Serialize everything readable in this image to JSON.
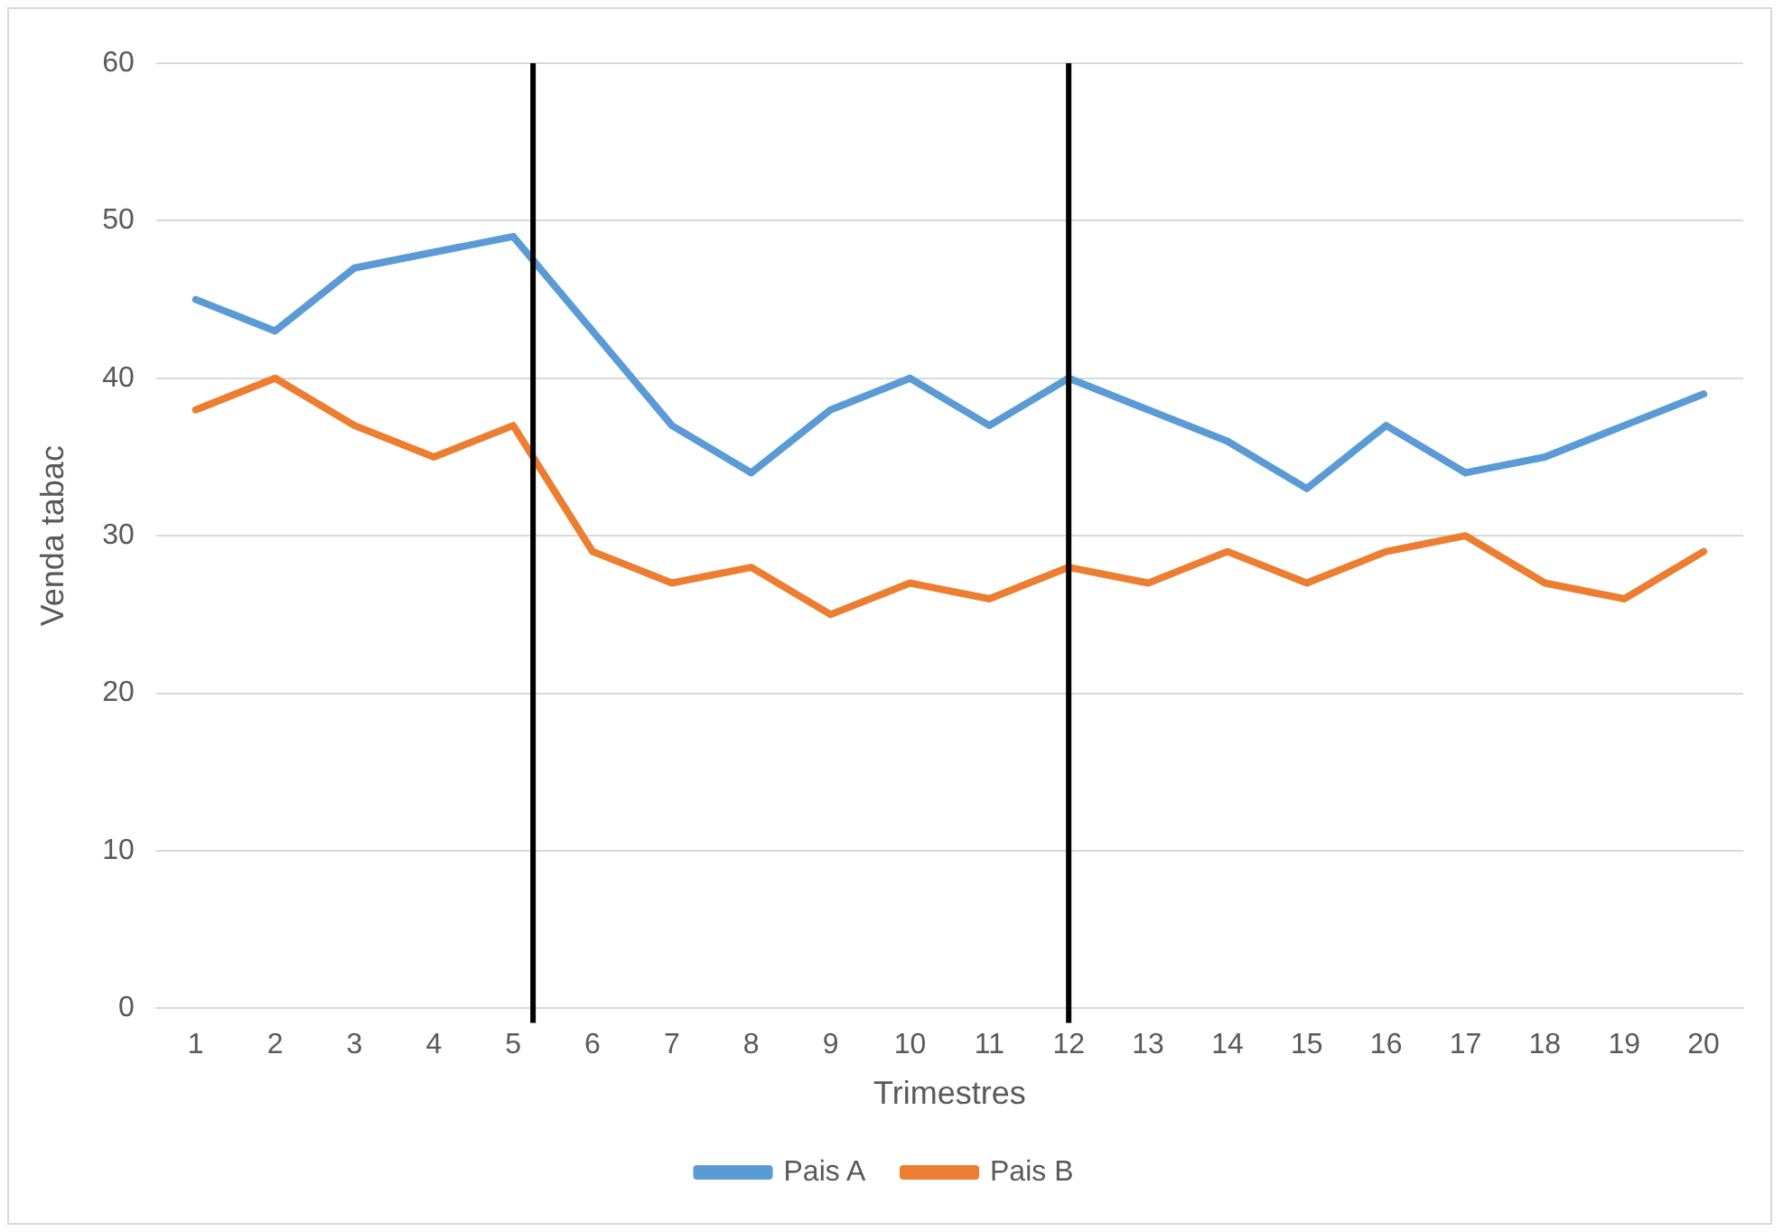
{
  "chart_data": {
    "type": "line",
    "xlabel": "Trimestres",
    "ylabel": "Venda tabac",
    "x": [
      1,
      2,
      3,
      4,
      5,
      6,
      7,
      8,
      9,
      10,
      11,
      12,
      13,
      14,
      15,
      16,
      17,
      18,
      19,
      20
    ],
    "xlim": [
      0.5,
      20.5
    ],
    "xticks": [
      1,
      2,
      3,
      4,
      5,
      6,
      7,
      8,
      9,
      10,
      11,
      12,
      13,
      14,
      15,
      16,
      17,
      18,
      19,
      20
    ],
    "ylim": [
      0,
      60
    ],
    "yticks": [
      0,
      10,
      20,
      30,
      40,
      50,
      60
    ],
    "series": [
      {
        "name": "Pais A",
        "color": "#5b9bd5",
        "values": [
          45,
          43,
          47,
          48,
          49,
          43,
          37,
          34,
          38,
          40,
          37,
          40,
          38,
          36,
          33,
          37,
          34,
          35,
          37,
          39
        ]
      },
      {
        "name": "Pais B",
        "color": "#ed7d31",
        "values": [
          38,
          40,
          37,
          35,
          37,
          29,
          27,
          28,
          25,
          27,
          26,
          28,
          27,
          29,
          27,
          29,
          30,
          27,
          26,
          29
        ]
      }
    ],
    "ref_lines": [
      {
        "axis": "x",
        "value": 5.25,
        "color": "#000000"
      },
      {
        "axis": "x",
        "value": 12,
        "color": "#000000"
      }
    ],
    "grid": "y",
    "legend": "bottom",
    "marker": "none",
    "line_style": "solid"
  }
}
